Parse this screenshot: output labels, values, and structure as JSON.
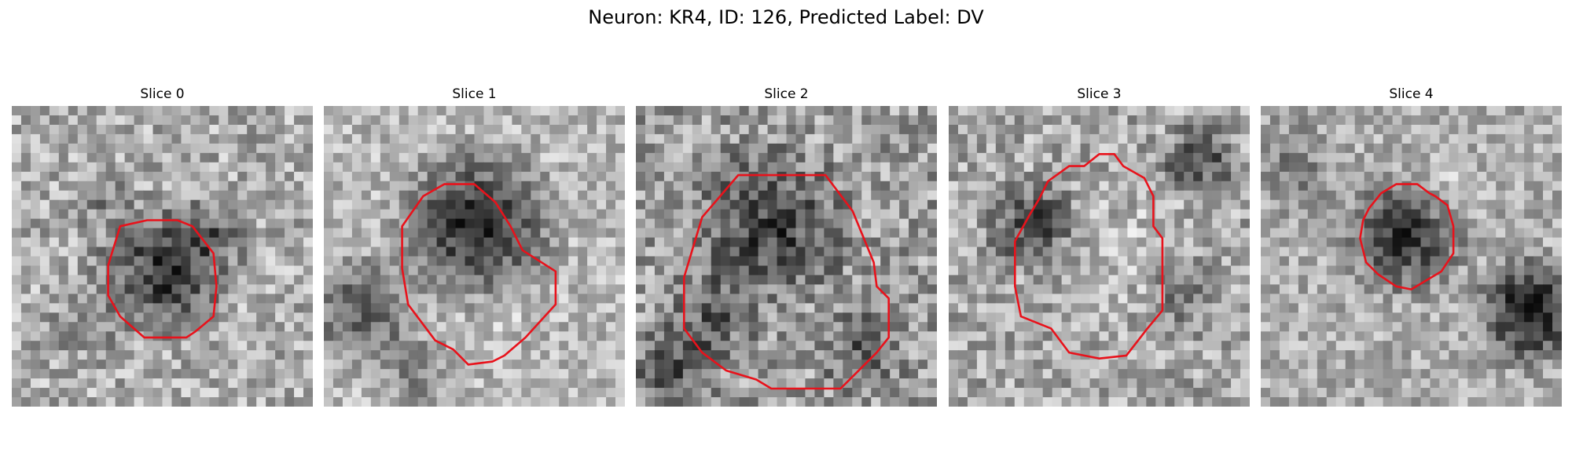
{
  "figure": {
    "title": "Neuron: KR4, ID: 126, Predicted Label: DV"
  },
  "panels": [
    {
      "title": "Slice 0"
    },
    {
      "title": "Slice 1"
    },
    {
      "title": "Slice 2"
    },
    {
      "title": "Slice 3"
    },
    {
      "title": "Slice 4"
    }
  ],
  "colors": {
    "contour": "#e8121b",
    "colormap": "grayscale"
  }
}
